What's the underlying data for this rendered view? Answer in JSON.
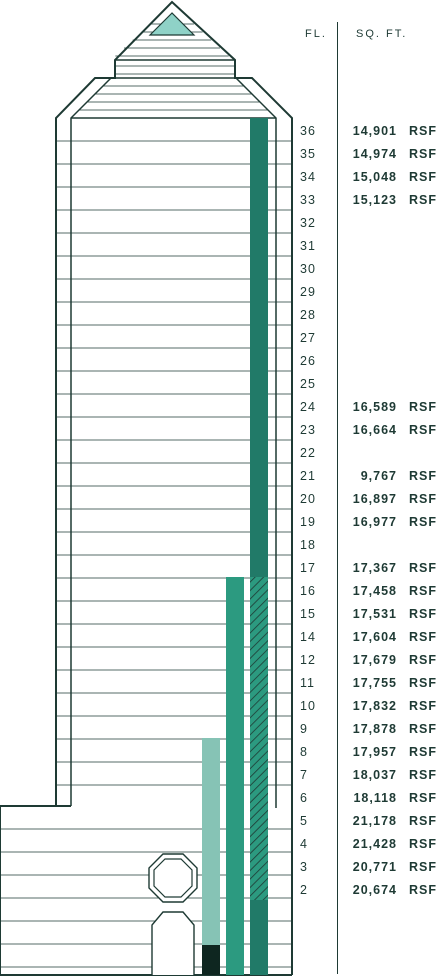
{
  "header": {
    "floor_label": "FL.",
    "area_label": "SQ. FT."
  },
  "colors": {
    "outline": "#1e3a34",
    "dark_green": "#217a68",
    "mid_green": "#2c9a80",
    "light_green": "#86c3b5",
    "near_black": "#0e2620",
    "roof_accent": "#8fd2c7"
  },
  "floors": [
    {
      "fl": "36",
      "sqft": "14,901",
      "unit": "RSF"
    },
    {
      "fl": "35",
      "sqft": "14,974",
      "unit": "RSF"
    },
    {
      "fl": "34",
      "sqft": "15,048",
      "unit": "RSF"
    },
    {
      "fl": "33",
      "sqft": "15,123",
      "unit": "RSF"
    },
    {
      "fl": "32",
      "sqft": "",
      "unit": ""
    },
    {
      "fl": "31",
      "sqft": "",
      "unit": ""
    },
    {
      "fl": "30",
      "sqft": "",
      "unit": ""
    },
    {
      "fl": "29",
      "sqft": "",
      "unit": ""
    },
    {
      "fl": "28",
      "sqft": "",
      "unit": ""
    },
    {
      "fl": "27",
      "sqft": "",
      "unit": ""
    },
    {
      "fl": "26",
      "sqft": "",
      "unit": ""
    },
    {
      "fl": "25",
      "sqft": "",
      "unit": ""
    },
    {
      "fl": "24",
      "sqft": "16,589",
      "unit": "RSF"
    },
    {
      "fl": "23",
      "sqft": "16,664",
      "unit": "RSF"
    },
    {
      "fl": "22",
      "sqft": "",
      "unit": ""
    },
    {
      "fl": "21",
      "sqft": "9,767",
      "unit": "RSF"
    },
    {
      "fl": "20",
      "sqft": "16,897",
      "unit": "RSF"
    },
    {
      "fl": "19",
      "sqft": "16,977",
      "unit": "RSF"
    },
    {
      "fl": "18",
      "sqft": "",
      "unit": ""
    },
    {
      "fl": "17",
      "sqft": "17,367",
      "unit": "RSF"
    },
    {
      "fl": "16",
      "sqft": "17,458",
      "unit": "RSF"
    },
    {
      "fl": "15",
      "sqft": "17,531",
      "unit": "RSF"
    },
    {
      "fl": "14",
      "sqft": "17,604",
      "unit": "RSF"
    },
    {
      "fl": "12",
      "sqft": "17,679",
      "unit": "RSF"
    },
    {
      "fl": "11",
      "sqft": "17,755",
      "unit": "RSF"
    },
    {
      "fl": "10",
      "sqft": "17,832",
      "unit": "RSF"
    },
    {
      "fl": "9",
      "sqft": "17,878",
      "unit": "RSF"
    },
    {
      "fl": "8",
      "sqft": "17,957",
      "unit": "RSF"
    },
    {
      "fl": "7",
      "sqft": "18,037",
      "unit": "RSF"
    },
    {
      "fl": "6",
      "sqft": "18,118",
      "unit": "RSF"
    },
    {
      "fl": "5",
      "sqft": "21,178",
      "unit": "RSF"
    },
    {
      "fl": "4",
      "sqft": "21,428",
      "unit": "RSF"
    },
    {
      "fl": "3",
      "sqft": "20,771",
      "unit": "RSF"
    },
    {
      "fl": "2",
      "sqft": "20,674",
      "unit": "RSF"
    }
  ]
}
